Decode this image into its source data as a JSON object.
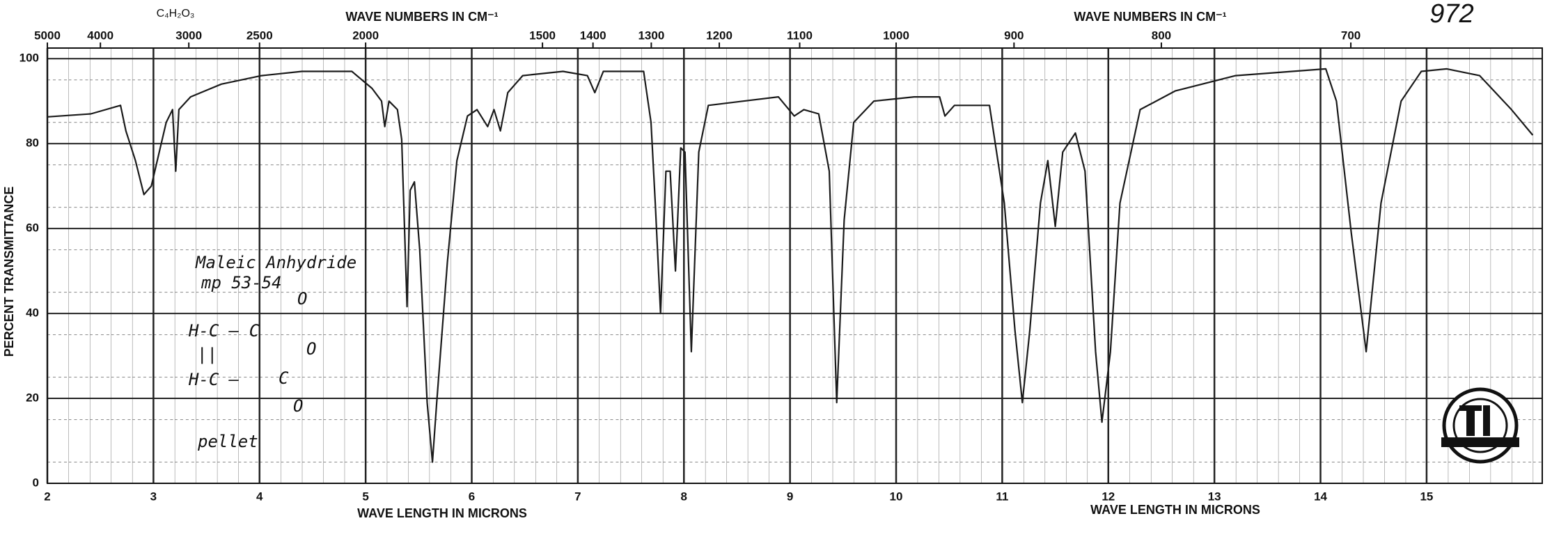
{
  "chart_data": {
    "type": "line",
    "title_left": "WAVE NUMBERS IN CM⁻¹",
    "title_right": "WAVE NUMBERS IN CM⁻¹",
    "formula": "C₄H₂O₃",
    "sheet_number": "972",
    "ylabel": "PERCENT TRANSMITTANCE",
    "xlabel_left": "WAVE LENGTH IN MICRONS",
    "xlabel_right": "WAVE LENGTH IN MICRONS",
    "annotations": [
      "Maleic Anhydride",
      "mp 53-54",
      "pellet",
      "H-C — C",
      "O",
      "O",
      "||",
      "H-C —",
      "C",
      "O"
    ],
    "color": "#1a1a1a",
    "xlim": [
      2,
      16.09
    ],
    "ylim": [
      0,
      102.5
    ],
    "xticks": [
      2,
      3,
      4,
      5,
      6,
      7,
      8,
      9,
      10,
      11,
      12,
      13,
      14,
      15
    ],
    "yticks": [
      0,
      20,
      40,
      60,
      80,
      100
    ],
    "top_ticks": [
      5000,
      4000,
      3000,
      2500,
      2000,
      1500,
      1400,
      1300,
      1200,
      1100,
      1000,
      900,
      800,
      700
    ],
    "grid": true,
    "x": [
      2.0,
      2.41,
      2.69,
      2.74,
      2.83,
      2.91,
      2.98,
      3.12,
      3.18,
      3.21,
      3.24,
      3.35,
      3.64,
      4.02,
      4.4,
      4.87,
      5.06,
      5.15,
      5.18,
      5.22,
      5.3,
      5.34,
      5.39,
      5.42,
      5.46,
      5.51,
      5.58,
      5.63,
      5.67,
      5.77,
      5.86,
      5.96,
      6.05,
      6.15,
      6.21,
      6.27,
      6.34,
      6.48,
      6.86,
      7.09,
      7.16,
      7.24,
      7.62,
      7.69,
      7.73,
      7.78,
      7.83,
      7.87,
      7.92,
      7.97,
      8.01,
      8.07,
      8.14,
      8.23,
      8.56,
      8.89,
      9.04,
      9.13,
      9.27,
      9.37,
      9.44,
      9.51,
      9.6,
      9.79,
      10.17,
      10.41,
      10.46,
      10.55,
      10.88,
      11.02,
      11.12,
      11.19,
      11.26,
      11.36,
      11.43,
      11.5,
      11.57,
      11.69,
      11.78,
      11.88,
      11.94,
      12.02,
      12.11,
      12.3,
      12.63,
      13.2,
      14.05,
      14.15,
      14.29,
      14.43,
      14.57,
      14.76,
      14.95,
      15.19,
      15.5,
      15.8,
      16.0
    ],
    "values": [
      86.3,
      87,
      89,
      83,
      76,
      68,
      70,
      85,
      88,
      73.5,
      88,
      91,
      94,
      96,
      97,
      97,
      93,
      90,
      84,
      90,
      88,
      81,
      41.6,
      69,
      71,
      55,
      19,
      5,
      19,
      52,
      76,
      86.5,
      88,
      84,
      88,
      83,
      92,
      96,
      97,
      96,
      92,
      97,
      97,
      85,
      66,
      40,
      73.5,
      73.5,
      50,
      79,
      78,
      31,
      78,
      89,
      90,
      91,
      86.5,
      88,
      87,
      73.5,
      19,
      62,
      85,
      90,
      91,
      91,
      86.5,
      89,
      89,
      66,
      36,
      19,
      36,
      66,
      76,
      60.5,
      78,
      82.5,
      73.5,
      31,
      14.4,
      31,
      66,
      88,
      92.4,
      96,
      97.6,
      90,
      59,
      31,
      66,
      90,
      97,
      97.6,
      96,
      88,
      82
    ]
  }
}
